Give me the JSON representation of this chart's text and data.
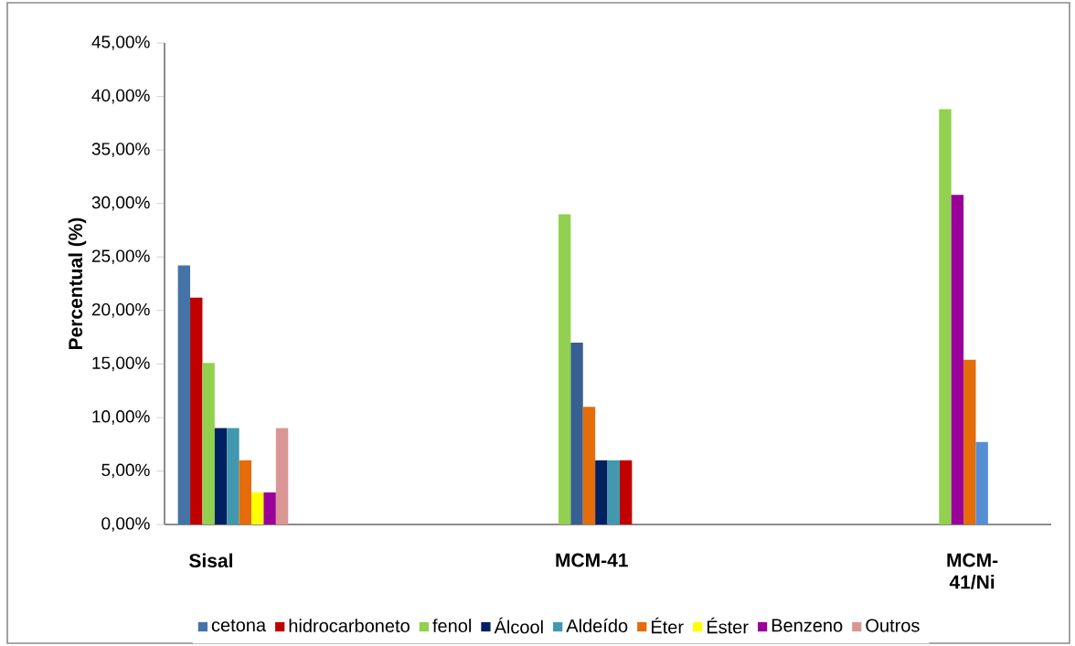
{
  "chart_data": {
    "type": "bar",
    "ylabel": "Percentual (%)",
    "categories": [
      "Sisal",
      "MCM-41",
      "MCM-41/Ni"
    ],
    "ylim": [
      0,
      45
    ],
    "yticks": [
      {
        "value": 0,
        "label": "0,00%"
      },
      {
        "value": 5,
        "label": "5,00%"
      },
      {
        "value": 10,
        "label": "10,00%"
      },
      {
        "value": 15,
        "label": "15,00%"
      },
      {
        "value": 20,
        "label": "20,00%"
      },
      {
        "value": 25,
        "label": "25,00%"
      },
      {
        "value": 30,
        "label": "30,00%"
      },
      {
        "value": 35,
        "label": "35,00%"
      },
      {
        "value": 40,
        "label": "40,00%"
      },
      {
        "value": 45,
        "label": "45,00%"
      }
    ],
    "legend": "bottom",
    "grid": false,
    "series": [
      {
        "name": "cetona",
        "color": "#4572a7",
        "values": [
          24.2,
          29.0,
          38.8
        ],
        "colors": [
          "#4572a7",
          "#92d050",
          "#92d050"
        ]
      },
      {
        "name": "hidrocarboneto",
        "color": "#c00000",
        "values": [
          21.2,
          17.0,
          30.8
        ],
        "colors": [
          "#c00000",
          "#376092",
          "#990099"
        ]
      },
      {
        "name": "fenol",
        "color": "#92d050",
        "values": [
          15.1,
          11.0,
          15.4
        ],
        "colors": [
          "#92d050",
          "#e46c0a",
          "#e46c0a"
        ]
      },
      {
        "name": "Álcool",
        "color": "#002060",
        "values": [
          9.0,
          6.0,
          7.7
        ],
        "colors": [
          "#002060",
          "#002060",
          "#558ed5"
        ]
      },
      {
        "name": "Aldeído",
        "color": "#4198af",
        "values": [
          9.0,
          6.0,
          null
        ],
        "colors": [
          "#4198af",
          "#4198af",
          null
        ]
      },
      {
        "name": "Éter",
        "color": "#e46c0a",
        "values": [
          6.0,
          6.0,
          null
        ],
        "colors": [
          "#e46c0a",
          "#c00000",
          null
        ]
      },
      {
        "name": "Éster",
        "color": "#ffff00",
        "values": [
          3.0,
          null,
          null
        ],
        "colors": [
          "#ffff00",
          null,
          null
        ]
      },
      {
        "name": "Benzeno",
        "color": "#990099",
        "values": [
          3.0,
          null,
          null
        ],
        "colors": [
          "#990099",
          null,
          null
        ]
      },
      {
        "name": "Outros",
        "color": "#da9694",
        "values": [
          9.0,
          null,
          null
        ],
        "colors": [
          "#da9694",
          null,
          null
        ]
      }
    ]
  }
}
